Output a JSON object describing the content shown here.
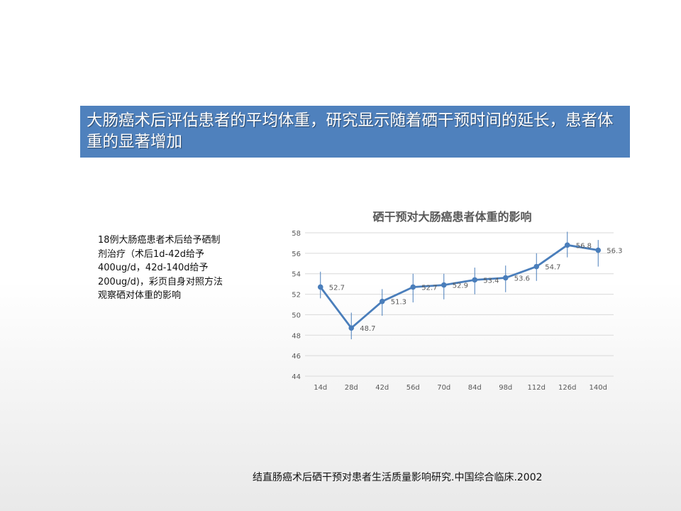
{
  "slide": {
    "banner_text": "大肠癌术后评估患者的平均体重，研究显示随着硒干预时间的延长，患者体重的显著增加",
    "note_text": "18例大肠癌患者术后给予硒制剂治疗（术后1d-42d给予400ug/d，42d-140d给予200ug/d)，彩页自身对照方法观察硒对体重的影响",
    "citation": "结直肠癌术后硒干预对患者生活质量影响研究.中国综合临床.2002"
  },
  "colors": {
    "banner": "#4f81bd",
    "series": "#4a7ebb",
    "grid": "#d9d9d9",
    "axis_text": "#595959"
  },
  "chart_data": {
    "type": "line",
    "title": "硒干预对大肠癌患者体重的影响",
    "xlabel": "",
    "ylabel": "",
    "categories": [
      "14d",
      "28d",
      "42d",
      "56d",
      "70d",
      "84d",
      "98d",
      "112d",
      "126d",
      "140d"
    ],
    "values": [
      52.7,
      48.7,
      51.3,
      52.7,
      52.9,
      53.4,
      53.6,
      54.7,
      56.8,
      56.3
    ],
    "data_labels": [
      "52.7",
      "48.7",
      "51.3",
      "52.7",
      "52.9",
      "53.4",
      "53.6",
      "54.7",
      "56.8",
      "56.3"
    ],
    "error_bars": true,
    "error_low": [
      51.6,
      47.6,
      49.9,
      51.2,
      51.5,
      52.0,
      52.2,
      53.3,
      55.6,
      54.7
    ],
    "error_high": [
      54.2,
      50.2,
      52.5,
      54.0,
      54.0,
      54.6,
      54.8,
      56.0,
      58.1,
      57.3
    ],
    "ylim": [
      44,
      58
    ],
    "yticks": [
      44,
      46,
      48,
      50,
      52,
      54,
      56,
      58
    ],
    "grid": true,
    "legend": "none"
  }
}
